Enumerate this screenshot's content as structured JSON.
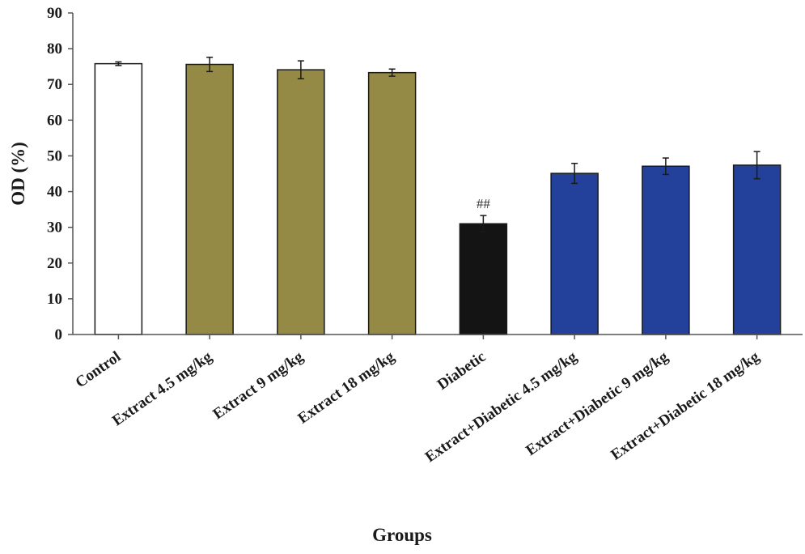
{
  "chart_data": {
    "type": "bar",
    "title": "",
    "xlabel": "Groups",
    "ylabel": "OD (%)",
    "ylim": [
      0,
      90
    ],
    "yticks": [
      0,
      10,
      20,
      30,
      40,
      50,
      60,
      70,
      80,
      90
    ],
    "grid": false,
    "categories": [
      "Control",
      "Extract 4.5 mg/kg",
      "Extract 9 mg/kg",
      "Extract 18 mg/kg",
      "Diabetic",
      "Extract+Diabetic 4.5 mg/kg",
      "Extract+Diabetic 9 mg/kg",
      "Extract+Diabetic 18 mg/kg"
    ],
    "values": [
      75.8,
      75.6,
      74.1,
      73.3,
      31.0,
      45.1,
      47.1,
      47.4
    ],
    "errors": [
      0.5,
      2.0,
      2.5,
      1.0,
      2.3,
      2.8,
      2.3,
      3.8
    ],
    "colors": [
      "#ffffff",
      "#958a45",
      "#958a45",
      "#958a45",
      "#141414",
      "#23409a",
      "#23409a",
      "#23409a"
    ],
    "annotations": [
      {
        "category": "Diabetic",
        "text": "##"
      }
    ]
  }
}
